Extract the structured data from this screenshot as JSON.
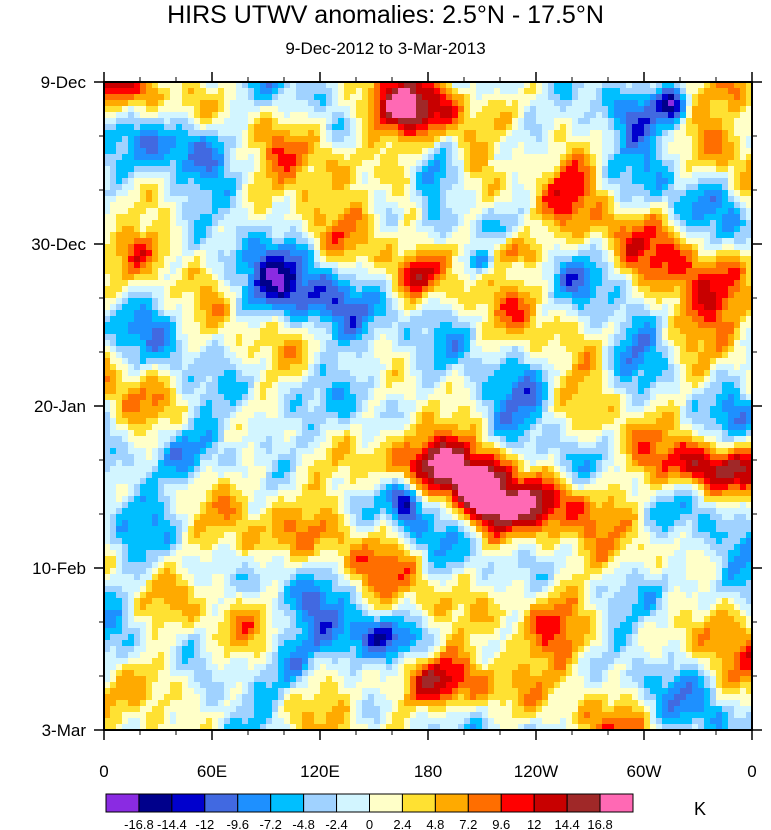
{
  "chart_data": {
    "type": "heatmap",
    "title": "HIRS UTWV anomalies: 2.5°N - 17.5°N",
    "subtitle": "9-Dec-2012 to 3-Mar-2013",
    "x_ticks": [
      "0",
      "60E",
      "120E",
      "180",
      "120W",
      "60W",
      "0"
    ],
    "x_tick_values": [
      0,
      60,
      120,
      180,
      240,
      300,
      360
    ],
    "y_ticks": [
      "9-Dec",
      "30-Dec",
      "20-Jan",
      "10-Feb",
      "3-Mar"
    ],
    "y_tick_values": [
      0,
      21,
      42,
      63,
      84
    ],
    "xlim": [
      0,
      360
    ],
    "ylim": [
      0,
      84
    ],
    "unit": "K",
    "colorbar_labels": [
      "-16.8",
      "-14.4",
      "-12",
      "-9.6",
      "-7.2",
      "-4.8",
      "-2.4",
      "0",
      "2.4",
      "4.8",
      "7.2",
      "9.6",
      "12",
      "14.4",
      "16.8"
    ],
    "colorbar_levels": [
      -16.8,
      -14.4,
      -12,
      -9.6,
      -7.2,
      -4.8,
      -2.4,
      0,
      2.4,
      4.8,
      7.2,
      9.6,
      12,
      14.4,
      16.8
    ],
    "colorbar_colors": [
      "#8a2be2",
      "#00008b",
      "#0000cd",
      "#4169e1",
      "#1e90ff",
      "#00bfff",
      "#a0d2ff",
      "#d2f5ff",
      "#ffffc8",
      "#ffe132",
      "#ffaa00",
      "#ff6e00",
      "#ff0000",
      "#c80000",
      "#a02828",
      "#ff69b4"
    ],
    "anomaly_features": [
      {
        "lon": 175,
        "day": 4,
        "value": 11,
        "sx": 22,
        "sy": 2.5
      },
      {
        "lon": 148,
        "day": 3,
        "value": 6,
        "sx": 18,
        "sy": 2
      },
      {
        "lon": 225,
        "day": 22,
        "value": 12,
        "sx": 18,
        "sy": 1.6
      },
      {
        "lon": 210,
        "day": 23,
        "value": -14,
        "sx": 5,
        "sy": 1.1
      },
      {
        "lon": 168,
        "day": 15,
        "value": 10,
        "sx": 7,
        "sy": 3
      },
      {
        "lon": 173,
        "day": 25,
        "value": 9,
        "sx": 6,
        "sy": 1.5
      },
      {
        "lon": 188,
        "day": 12,
        "value": -8,
        "sx": 10,
        "sy": 2.5
      },
      {
        "lon": 180,
        "day": 50,
        "value": 11,
        "sx": 35,
        "sy": 3
      },
      {
        "lon": 250,
        "day": 54,
        "value": 11,
        "sx": 30,
        "sy": 2.5
      },
      {
        "lon": 332,
        "day": 50,
        "value": 12,
        "sx": 20,
        "sy": 2.2
      },
      {
        "lon": 210,
        "day": 55,
        "value": 11,
        "sx": 12,
        "sy": 4
      },
      {
        "lon": 227,
        "day": 53,
        "value": -7,
        "sx": 8,
        "sy": 2
      },
      {
        "lon": 185,
        "day": 78,
        "value": 12,
        "sx": 24,
        "sy": 2.5
      },
      {
        "lon": 168,
        "day": 54,
        "value": -14,
        "sx": 6,
        "sy": 2
      },
      {
        "lon": 155,
        "day": 72,
        "value": -8,
        "sx": 22,
        "sy": 2
      },
      {
        "lon": 105,
        "day": 75,
        "value": -10,
        "sx": 16,
        "sy": 3
      },
      {
        "lon": 35,
        "day": 77,
        "value": 7,
        "sx": 12,
        "sy": 3
      },
      {
        "lon": 248,
        "day": 70,
        "value": 8,
        "sx": 20,
        "sy": 4
      },
      {
        "lon": 45,
        "day": 48,
        "value": -9,
        "sx": 18,
        "sy": 3
      },
      {
        "lon": 95,
        "day": 28,
        "value": -9,
        "sx": 30,
        "sy": 4
      },
      {
        "lon": 330,
        "day": 28,
        "value": 7,
        "sx": 22,
        "sy": 6
      },
      {
        "lon": 258,
        "day": 12,
        "value": 7,
        "sx": 12,
        "sy": 4
      },
      {
        "lon": 295,
        "day": 4,
        "value": -10,
        "sx": 16,
        "sy": 3
      },
      {
        "lon": 317,
        "day": 3,
        "value": -12,
        "sx": 5,
        "sy": 1.5
      },
      {
        "lon": 355,
        "day": 1,
        "value": 8,
        "sx": 10,
        "sy": 2
      },
      {
        "lon": 45,
        "day": 8,
        "value": -9,
        "sx": 18,
        "sy": 3
      },
      {
        "lon": 130,
        "day": 10,
        "value": 6,
        "sx": 22,
        "sy": 3
      },
      {
        "lon": 20,
        "day": 22,
        "value": 6,
        "sx": 14,
        "sy": 2
      },
      {
        "lon": 15,
        "day": 1,
        "value": 6,
        "sx": 10,
        "sy": 2
      },
      {
        "lon": 320,
        "day": 66,
        "value": -8,
        "sx": 18,
        "sy": 3
      },
      {
        "lon": 350,
        "day": 45,
        "value": -6,
        "sx": 8,
        "sy": 3
      },
      {
        "lon": 340,
        "day": 70,
        "value": 6,
        "sx": 12,
        "sy": 3
      },
      {
        "lon": 10,
        "day": 65,
        "value": -6,
        "sx": 10,
        "sy": 4
      },
      {
        "lon": 75,
        "day": 60,
        "value": 7,
        "sx": 18,
        "sy": 3
      },
      {
        "lon": 140,
        "day": 40,
        "value": -7,
        "sx": 14,
        "sy": 4
      },
      {
        "lon": 235,
        "day": 40,
        "value": -6,
        "sx": 14,
        "sy": 3
      },
      {
        "lon": 295,
        "day": 35,
        "value": -6,
        "sx": 12,
        "sy": 3
      },
      {
        "lon": 60,
        "day": 36,
        "value": 5,
        "sx": 14,
        "sy": 3
      }
    ]
  }
}
